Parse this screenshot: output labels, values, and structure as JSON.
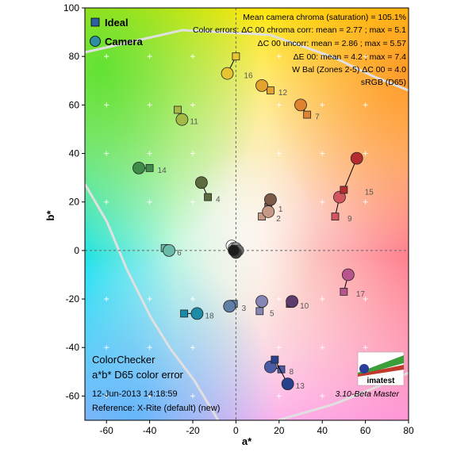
{
  "chart_data": {
    "type": "scatter",
    "xlabel": "a*",
    "ylabel": "b*",
    "xlim": [
      -70,
      80
    ],
    "ylim": [
      -70,
      100
    ],
    "xticks": [
      -60,
      -40,
      -20,
      0,
      20,
      40,
      60,
      80
    ],
    "yticks": [
      -60,
      -40,
      -20,
      0,
      20,
      40,
      60,
      80,
      100
    ],
    "grid": "plus markers every 20 units",
    "legend": [
      "Ideal",
      "Camera"
    ],
    "legend_position": "top-left",
    "annotations": [
      "Mean camera chroma (saturation) = 105.1%",
      "Color errors: ΔC 00 chroma corr:  mean = 2.77 ;  max = 5.1",
      "ΔC 00 uncorr:  mean = 2.86 ;  max = 5.57",
      "ΔE 00:  mean = 4.2 ;  max = 7.4",
      "W Bal (Zones 2-5) ΔC 00 = 4.0",
      "sRGB (D65)"
    ],
    "bottom_left": {
      "title1": "ColorChecker",
      "title2": "a*b* D65 color error",
      "date": "12-Jun-2013 14:18:59",
      "reference": "Reference: X-Rite (default) (new)"
    },
    "version": "3.10-Beta  Master",
    "logo_text": "imatest",
    "patches": [
      {
        "id": "1",
        "ideal": [
          15,
          18
        ],
        "camera": [
          16,
          21
        ],
        "color": "#7e5a49"
      },
      {
        "id": "2",
        "ideal": [
          12,
          14
        ],
        "camera": [
          15,
          16
        ],
        "color": "#c79a88"
      },
      {
        "id": "3",
        "ideal": [
          -1,
          -22
        ],
        "camera": [
          -3,
          -23
        ],
        "color": "#5f7fa6"
      },
      {
        "id": "4",
        "ideal": [
          -13,
          22
        ],
        "camera": [
          -16,
          28
        ],
        "color": "#5b6b3d"
      },
      {
        "id": "5",
        "ideal": [
          11,
          -25
        ],
        "camera": [
          12,
          -21
        ],
        "color": "#8785b6"
      },
      {
        "id": "6",
        "ideal": [
          -33,
          1
        ],
        "camera": [
          -31,
          0
        ],
        "color": "#6cbaaa"
      },
      {
        "id": "7",
        "ideal": [
          33,
          56
        ],
        "camera": [
          30,
          60
        ],
        "color": "#e08331"
      },
      {
        "id": "8",
        "ideal": [
          21,
          -49
        ],
        "camera": [
          16,
          -48
        ],
        "color": "#4a5ca6"
      },
      {
        "id": "9",
        "ideal": [
          46,
          14
        ],
        "camera": [
          48,
          22
        ],
        "color": "#d2545f"
      },
      {
        "id": "10",
        "ideal": [
          25,
          -22
        ],
        "camera": [
          26,
          -21
        ],
        "color": "#5d3b6d"
      },
      {
        "id": "11",
        "ideal": [
          -27,
          58
        ],
        "camera": [
          -25,
          54
        ],
        "color": "#a4ba47"
      },
      {
        "id": "12",
        "ideal": [
          16,
          66
        ],
        "camera": [
          12,
          68
        ],
        "color": "#e5a32d"
      },
      {
        "id": "13",
        "ideal": [
          18,
          -45
        ],
        "camera": [
          24,
          -55
        ],
        "color": "#28418e"
      },
      {
        "id": "14",
        "ideal": [
          -40,
          34
        ],
        "camera": [
          -45,
          34
        ],
        "color": "#3f8b4a"
      },
      {
        "id": "15",
        "ideal": [
          50,
          25
        ],
        "camera": [
          56,
          38
        ],
        "color": "#b52b30"
      },
      {
        "id": "16",
        "ideal": [
          0,
          80
        ],
        "camera": [
          -4,
          73
        ],
        "color": "#e6c533"
      },
      {
        "id": "17",
        "ideal": [
          50,
          -17
        ],
        "camera": [
          52,
          -10
        ],
        "color": "#b9548e"
      },
      {
        "id": "18",
        "ideal": [
          -24,
          -26
        ],
        "camera": [
          -18,
          -26
        ],
        "color": "#1b8ba8"
      }
    ],
    "neutrals": [
      [
        -2,
        2
      ],
      [
        -1,
        1
      ],
      [
        0,
        1
      ],
      [
        1,
        0
      ],
      [
        0,
        -1
      ],
      [
        -1,
        0
      ]
    ]
  }
}
